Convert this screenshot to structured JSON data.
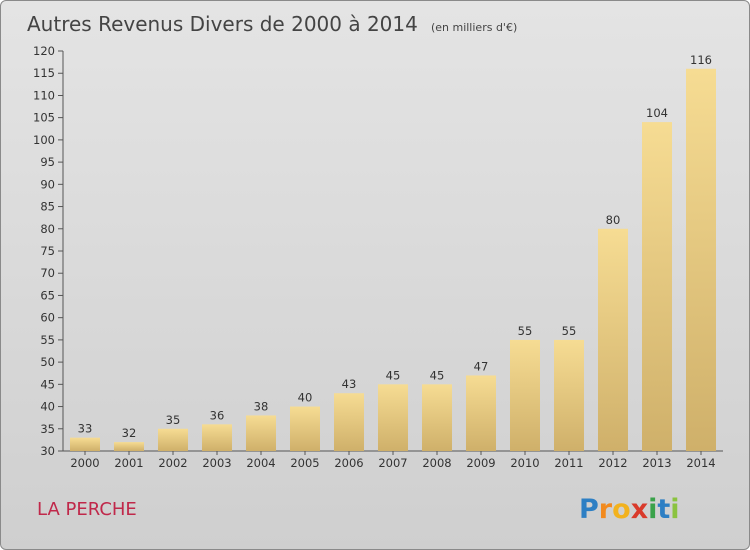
{
  "chart_data": {
    "type": "bar",
    "title": "Autres Revenus Divers de 2000 à 2014",
    "subtitle": "(en milliers d'€)",
    "categories": [
      "2000",
      "2001",
      "2002",
      "2003",
      "2004",
      "2005",
      "2006",
      "2007",
      "2008",
      "2009",
      "2010",
      "2011",
      "2012",
      "2013",
      "2014"
    ],
    "values": [
      33,
      32,
      35,
      36,
      38,
      40,
      43,
      45,
      45,
      47,
      55,
      55,
      80,
      104,
      116
    ],
    "ylim": [
      30,
      120
    ],
    "yticks": [
      30,
      35,
      40,
      45,
      50,
      55,
      60,
      65,
      70,
      75,
      80,
      85,
      90,
      95,
      100,
      105,
      110,
      115,
      120
    ],
    "grid": false,
    "bar_color": "#e8c873"
  },
  "commune": "LA PERCHE",
  "brand": {
    "letters": [
      "P",
      "r",
      "o",
      "x",
      "i",
      "t",
      "i"
    ],
    "colors": [
      "#2d7fc4",
      "#f28a1e",
      "#f2b21e",
      "#d93a2b",
      "#3aa24a",
      "#2d7fc4",
      "#8bc33f"
    ]
  }
}
